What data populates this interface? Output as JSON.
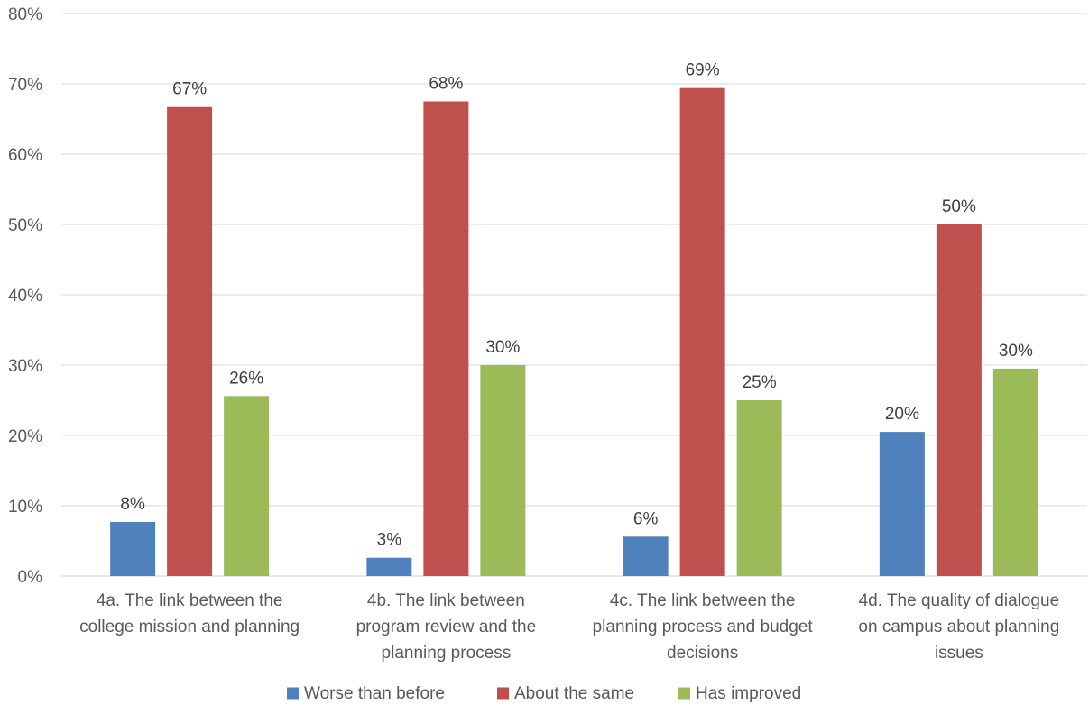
{
  "chart_data": {
    "type": "bar",
    "title": "",
    "xlabel": "",
    "ylabel": "",
    "ylim": [
      0,
      80
    ],
    "y_ticks": [
      0,
      10,
      20,
      30,
      40,
      50,
      60,
      70,
      80
    ],
    "y_tick_labels": [
      "0%",
      "10%",
      "20%",
      "30%",
      "40%",
      "50%",
      "60%",
      "70%",
      "80%"
    ],
    "grid": true,
    "legend_position": "bottom",
    "categories": [
      [
        "4a. The link between the",
        "college mission and planning"
      ],
      [
        "4b. The link between",
        "program review and the",
        "planning process"
      ],
      [
        "4c. The link between the",
        "planning process and budget",
        "decisions"
      ],
      [
        "4d. The quality of dialogue",
        "on campus about planning",
        "issues"
      ]
    ],
    "series": [
      {
        "name": "Worse than before",
        "color": "#4f81bd",
        "values": [
          7.7,
          2.6,
          5.6,
          20.5
        ],
        "labels": [
          "8%",
          "3%",
          "6%",
          "20%"
        ]
      },
      {
        "name": "About the same",
        "color": "#c0504d",
        "values": [
          66.7,
          67.5,
          69.4,
          50.0
        ],
        "labels": [
          "67%",
          "68%",
          "69%",
          "50%"
        ]
      },
      {
        "name": "Has improved",
        "color": "#9bbb59",
        "values": [
          25.6,
          30.0,
          25.0,
          29.5
        ],
        "labels": [
          "26%",
          "30%",
          "25%",
          "30%"
        ]
      }
    ]
  }
}
